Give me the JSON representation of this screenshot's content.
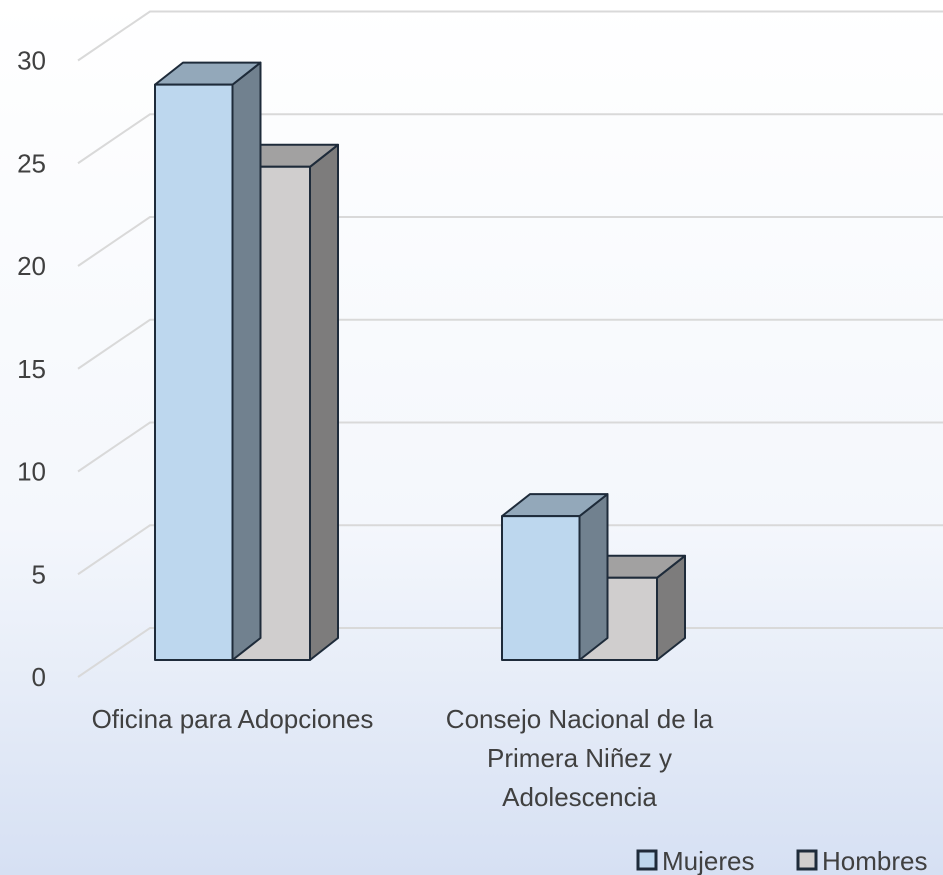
{
  "chart_data": {
    "type": "bar3d",
    "categories": [
      "Oficina para Adopciones",
      "Consejo Nacional de la Primera Niñez y Adolescencia"
    ],
    "series": [
      {
        "name": "Mujeres",
        "color": "#bdd7ee",
        "values": [
          28,
          7
        ]
      },
      {
        "name": "Hombres",
        "color": "#d0cece",
        "values": [
          24,
          4
        ]
      }
    ],
    "ylim": [
      0,
      30
    ],
    "yticks": [
      0,
      5,
      10,
      15,
      20,
      25,
      30
    ],
    "grid": true,
    "legend": "bottom-right"
  }
}
